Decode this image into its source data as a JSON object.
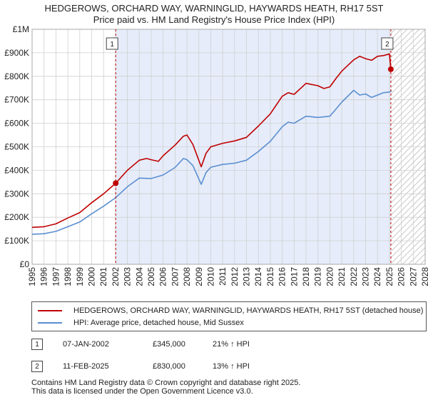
{
  "title_line1": "HEDGEROWS, ORCHARD WAY, WARNINGLID, HAYWARDS HEATH, RH17 5ST",
  "title_line2": "Price paid vs. HM Land Registry's House Price Index (HPI)",
  "colors": {
    "property": "#c00000",
    "hpi": "#5b8fd0",
    "shade": "#e6ecfa"
  },
  "chart_data": {
    "type": "line",
    "title": "HEDGEROWS, ORCHARD WAY, WARNINGLID, HAYWARDS HEATH, RH17 5ST",
    "subtitle": "Price paid vs. HM Land Registry's House Price Index (HPI)",
    "xlim": [
      1995,
      2028
    ],
    "ylim": [
      0,
      1000000
    ],
    "x_ticks": [
      "1995",
      "1996",
      "1997",
      "1998",
      "1999",
      "2000",
      "2001",
      "2002",
      "2003",
      "2004",
      "2005",
      "2006",
      "2007",
      "2008",
      "2009",
      "2010",
      "2011",
      "2012",
      "2013",
      "2014",
      "2015",
      "2016",
      "2017",
      "2018",
      "2019",
      "2020",
      "2021",
      "2022",
      "2023",
      "2024",
      "2025",
      "2026",
      "2027",
      "2028"
    ],
    "y_ticks": [
      {
        "value": 0,
        "label": "£0"
      },
      {
        "value": 100000,
        "label": "£100K"
      },
      {
        "value": 200000,
        "label": "£200K"
      },
      {
        "value": 300000,
        "label": "£300K"
      },
      {
        "value": 400000,
        "label": "£400K"
      },
      {
        "value": 500000,
        "label": "£500K"
      },
      {
        "value": 600000,
        "label": "£600K"
      },
      {
        "value": 700000,
        "label": "£700K"
      },
      {
        "value": 800000,
        "label": "£800K"
      },
      {
        "value": 900000,
        "label": "£900K"
      },
      {
        "value": 1000000,
        "label": "£1M"
      }
    ],
    "grid": true,
    "shaded_range": [
      2002.02,
      2025.12
    ],
    "future_hatch_from": 2025.12,
    "series": [
      {
        "name": "HEDGEROWS, ORCHARD WAY, WARNINGLID, HAYWARDS HEATH, RH17 5ST (detached house)",
        "x": [
          1995.0,
          1996.0,
          1997.0,
          1998.0,
          1999.0,
          2000.0,
          2001.0,
          2002.02,
          2003.0,
          2004.0,
          2004.6,
          2005.0,
          2005.6,
          2006.0,
          2007.0,
          2007.7,
          2008.0,
          2008.5,
          2009.2,
          2009.6,
          2010.0,
          2011.0,
          2012.0,
          2013.0,
          2014.0,
          2015.0,
          2016.0,
          2016.5,
          2017.0,
          2018.0,
          2019.0,
          2019.5,
          2020.0,
          2020.5,
          2021.0,
          2022.0,
          2022.5,
          2023.0,
          2023.5,
          2024.0,
          2024.5,
          2025.0,
          2025.12
        ],
        "y": [
          157000,
          160000,
          172000,
          197000,
          220000,
          262000,
          300000,
          345000,
          400000,
          443000,
          450000,
          445000,
          438000,
          462000,
          507000,
          545000,
          550000,
          510000,
          415000,
          472000,
          500000,
          515000,
          525000,
          540000,
          588000,
          640000,
          715000,
          730000,
          723000,
          770000,
          760000,
          748000,
          755000,
          790000,
          822000,
          870000,
          885000,
          875000,
          868000,
          885000,
          888000,
          895000,
          830000
        ]
      },
      {
        "name": "HPI: Average price, detached house, Mid Sussex",
        "x": [
          1995.0,
          1996.0,
          1997.0,
          1998.0,
          1999.0,
          2000.0,
          2001.0,
          2002.0,
          2003.0,
          2004.0,
          2005.0,
          2006.0,
          2007.0,
          2007.7,
          2008.0,
          2008.5,
          2009.2,
          2009.6,
          2010.0,
          2011.0,
          2012.0,
          2013.0,
          2014.0,
          2015.0,
          2016.0,
          2016.5,
          2017.0,
          2018.0,
          2019.0,
          2020.0,
          2020.5,
          2021.0,
          2022.0,
          2022.5,
          2023.0,
          2023.5,
          2024.0,
          2024.5,
          2025.0,
          2025.2
        ],
        "y": [
          128000,
          130000,
          140000,
          160000,
          180000,
          215000,
          247000,
          283000,
          330000,
          367000,
          365000,
          380000,
          412000,
          450000,
          445000,
          420000,
          340000,
          390000,
          413000,
          425000,
          430000,
          443000,
          480000,
          523000,
          585000,
          605000,
          600000,
          630000,
          625000,
          630000,
          660000,
          690000,
          740000,
          720000,
          725000,
          710000,
          720000,
          730000,
          733000,
          738000
        ]
      }
    ],
    "annotations": [
      {
        "label": "1",
        "x": 2002.02,
        "y": 345000
      },
      {
        "label": "2",
        "x": 2025.12,
        "y": 830000
      }
    ]
  },
  "legend": {
    "property": "HEDGEROWS, ORCHARD WAY, WARNINGLID, HAYWARDS HEATH, RH17 5ST (detached house)",
    "hpi": "HPI: Average price, detached house, Mid Sussex"
  },
  "transactions": [
    {
      "marker": "1",
      "date": "07-JAN-2002",
      "price": "£345,000",
      "pct": "21% ↑ HPI"
    },
    {
      "marker": "2",
      "date": "11-FEB-2025",
      "price": "£830,000",
      "pct": "13% ↑ HPI"
    }
  ],
  "footer_line1": "Contains HM Land Registry data © Crown copyright and database right 2025.",
  "footer_line2": "This data is licensed under the Open Government Licence v3.0."
}
